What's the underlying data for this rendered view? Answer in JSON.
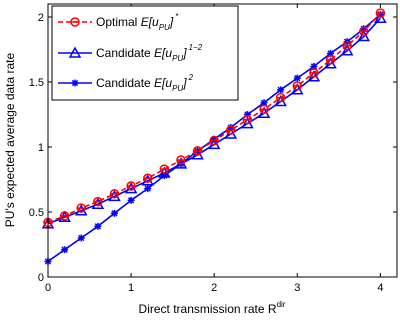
{
  "chart_data": {
    "type": "line",
    "xlabel": "Direct transmission rate R",
    "xlabel_sup": "dir",
    "ylabel": "PU's expected average data rate",
    "xlim": [
      0,
      4.2
    ],
    "ylim": [
      0,
      2.1
    ],
    "xticks": [
      0,
      1,
      2,
      3,
      4
    ],
    "xtick_labels": [
      "0",
      "1",
      "2",
      "3",
      "4"
    ],
    "yticks": [
      0,
      0.5,
      1,
      1.5,
      2
    ],
    "ytick_labels": [
      "0",
      "0.5",
      "1",
      "1.5",
      "2"
    ],
    "grid": false,
    "legend_position": "top-left",
    "x": [
      0,
      0.2,
      0.4,
      0.6,
      0.8,
      1.0,
      1.2,
      1.4,
      1.6,
      1.8,
      2.0,
      2.2,
      2.4,
      2.6,
      2.8,
      3.0,
      3.2,
      3.4,
      3.6,
      3.8,
      4.0
    ],
    "series": [
      {
        "name": "Optimal E[u_PU]*",
        "legend_prefix": "Optimal ",
        "legend_main": "E[u",
        "legend_sub": "PU",
        "legend_close": "]",
        "legend_sup": "*",
        "color": "#ff0000",
        "line_style": "dashed",
        "marker": "circle",
        "values": [
          0.42,
          0.47,
          0.53,
          0.58,
          0.64,
          0.7,
          0.76,
          0.83,
          0.9,
          0.97,
          1.05,
          1.13,
          1.21,
          1.29,
          1.38,
          1.47,
          1.57,
          1.67,
          1.78,
          1.89,
          2.03
        ]
      },
      {
        "name": "Candidate E[u_PU]^{1-2}",
        "legend_prefix": "Candidate ",
        "legend_main": "E[u",
        "legend_sub": "PU",
        "legend_close": "]",
        "legend_sup": "1−2",
        "color": "#0000ff",
        "line_style": "solid",
        "marker": "triangle",
        "values": [
          0.41,
          0.46,
          0.51,
          0.56,
          0.62,
          0.68,
          0.74,
          0.8,
          0.87,
          0.94,
          1.02,
          1.1,
          1.18,
          1.26,
          1.35,
          1.44,
          1.54,
          1.64,
          1.74,
          1.85,
          1.99
        ]
      },
      {
        "name": "Candidate E[u_PU]^2",
        "legend_prefix": "Candidate ",
        "legend_main": "E[u",
        "legend_sub": "PU",
        "legend_close": "]",
        "legend_sup": "2",
        "color": "#0000ff",
        "line_style": "solid",
        "marker": "star",
        "values": [
          0.12,
          0.21,
          0.3,
          0.39,
          0.49,
          0.59,
          0.68,
          0.78,
          0.87,
          0.97,
          1.06,
          1.15,
          1.25,
          1.34,
          1.44,
          1.53,
          1.62,
          1.72,
          1.81,
          1.91,
          2.02
        ]
      }
    ]
  }
}
